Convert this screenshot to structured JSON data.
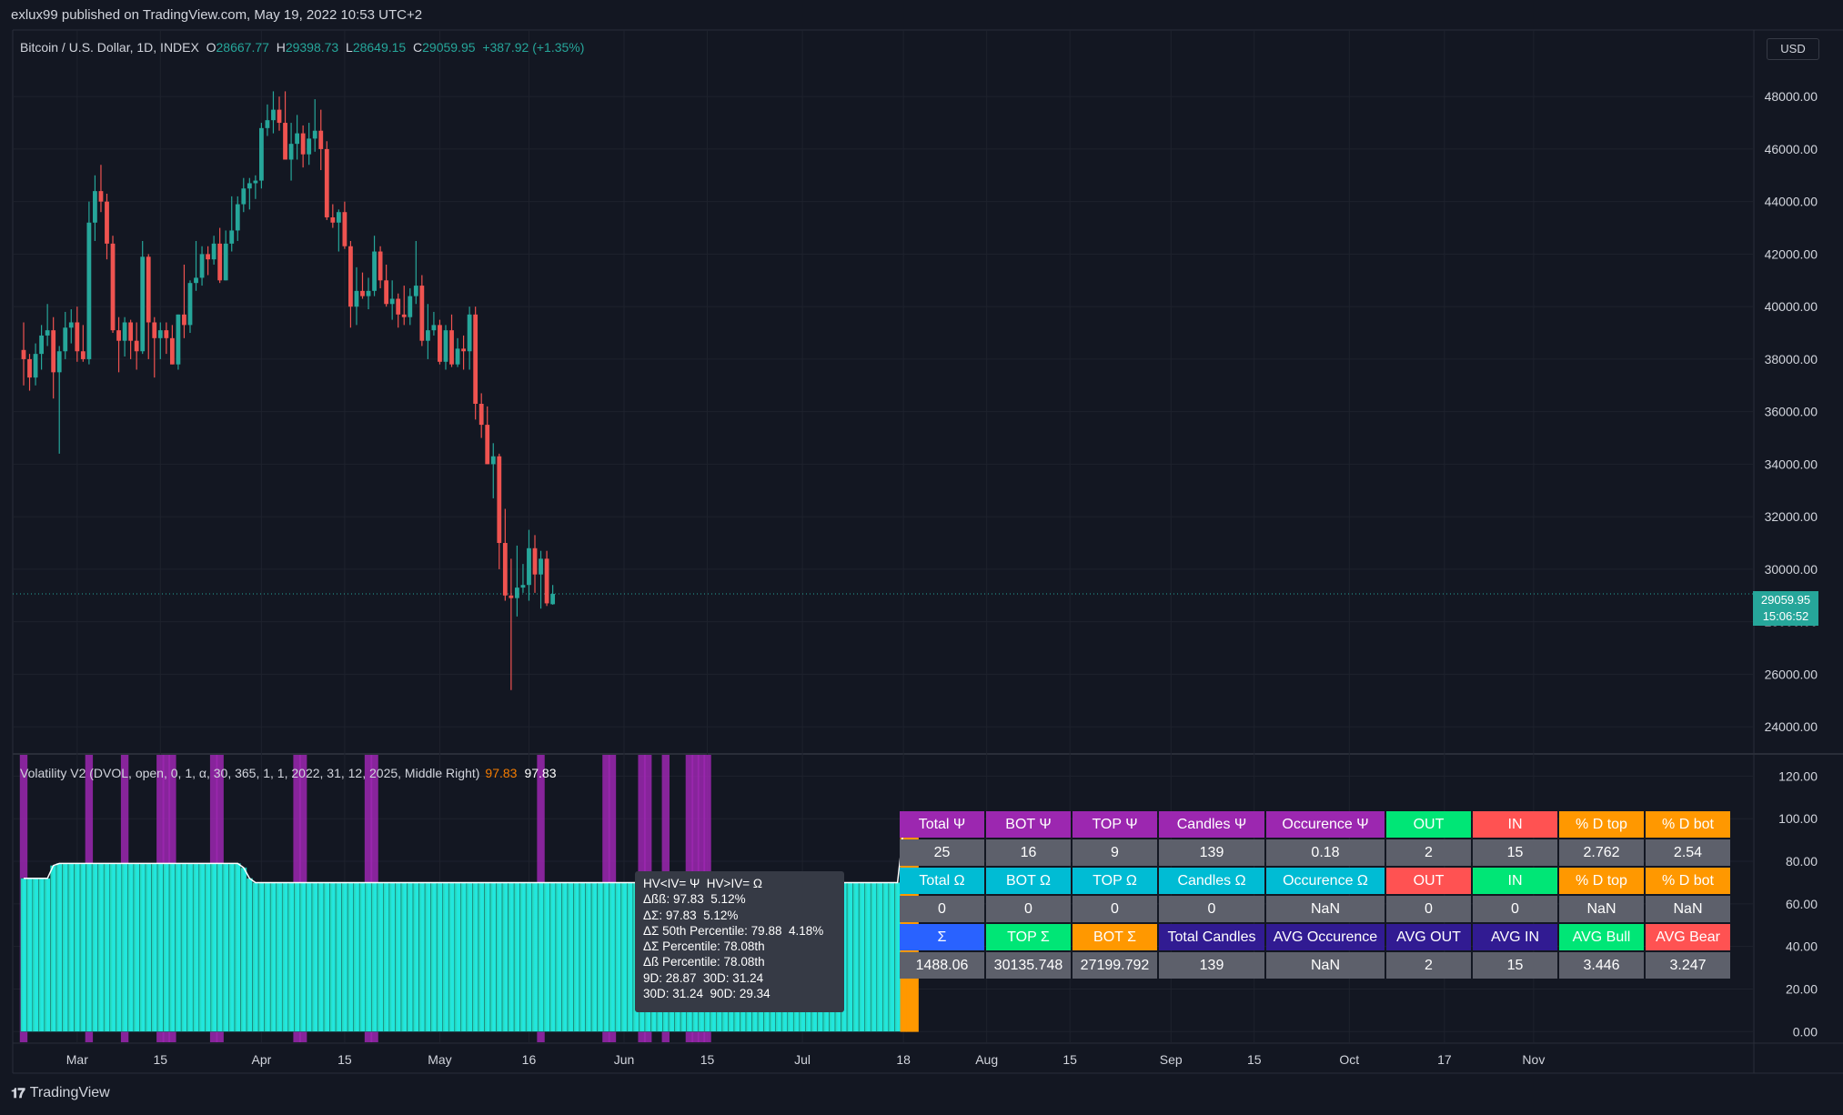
{
  "header": {
    "publisher_line": "exlux99 published on TradingView.com, May 19, 2022 10:53 UTC+2"
  },
  "symbol": {
    "name": "Bitcoin / U.S. Dollar, 1D, INDEX",
    "open_label": "O",
    "open": "28667.77",
    "high_label": "H",
    "high": "29398.73",
    "low_label": "L",
    "low": "28649.15",
    "close_label": "C",
    "close": "29059.95",
    "change": "+387.92 (+1.35%)"
  },
  "currency_button": "USD",
  "last_price": {
    "price": "29059.95",
    "countdown": "15:06:52"
  },
  "footer": {
    "brand": "TradingView",
    "logo": "tradingview-logo-icon"
  },
  "indicator_legend": {
    "name": "Volatility V2 (DVOL, open, 0, 1, α, 30, 365, 1, 1, 2022, 31, 12, 2025, Middle Right)",
    "value1": "97.83",
    "value2": "97.83"
  },
  "tooltip_lines": [
    "HV<IV= Ψ  HV>IV= Ω",
    "Δßß: 97.83  5.12%",
    "ΔΣ: 97.83  5.12%",
    "ΔΣ 50th Percentile: 79.88  4.18%",
    "ΔΣ Percentile: 78.08th",
    "Δß Percentile: 78.08th",
    "9D: 28.87  30D: 31.24",
    "30D: 31.24  90D: 29.34"
  ],
  "stats_table": {
    "rows": [
      [
        {
          "t": "Total Ψ",
          "bg": "#9c27b0"
        },
        {
          "t": "BOT Ψ",
          "bg": "#9c27b0"
        },
        {
          "t": "TOP Ψ",
          "bg": "#9c27b0"
        },
        {
          "t": "Candles Ψ",
          "bg": "#9c27b0"
        },
        {
          "t": "Occurence Ψ",
          "bg": "#9c27b0"
        },
        {
          "t": "OUT",
          "bg": "#00e676"
        },
        {
          "t": "IN",
          "bg": "#ff5252"
        },
        {
          "t": "% D top",
          "bg": "#ff9800"
        },
        {
          "t": "% D bot",
          "bg": "#ff9800"
        }
      ],
      [
        {
          "t": "25",
          "bg": "#5d606b"
        },
        {
          "t": "16",
          "bg": "#5d606b"
        },
        {
          "t": "9",
          "bg": "#5d606b"
        },
        {
          "t": "139",
          "bg": "#5d606b"
        },
        {
          "t": "0.18",
          "bg": "#5d606b"
        },
        {
          "t": "2",
          "bg": "#5d606b"
        },
        {
          "t": "15",
          "bg": "#5d606b"
        },
        {
          "t": "2.762",
          "bg": "#5d606b"
        },
        {
          "t": "2.54",
          "bg": "#5d606b"
        }
      ],
      [
        {
          "t": "Total Ω",
          "bg": "#00bcd4"
        },
        {
          "t": "BOT Ω",
          "bg": "#00bcd4"
        },
        {
          "t": "TOP Ω",
          "bg": "#00bcd4"
        },
        {
          "t": "Candles Ω",
          "bg": "#00bcd4"
        },
        {
          "t": "Occurence Ω",
          "bg": "#00bcd4"
        },
        {
          "t": "OUT",
          "bg": "#ff5252"
        },
        {
          "t": "IN",
          "bg": "#00e676"
        },
        {
          "t": "% D top",
          "bg": "#ff9800"
        },
        {
          "t": "% D bot",
          "bg": "#ff9800"
        }
      ],
      [
        {
          "t": "0",
          "bg": "#5d606b"
        },
        {
          "t": "0",
          "bg": "#5d606b"
        },
        {
          "t": "0",
          "bg": "#5d606b"
        },
        {
          "t": "0",
          "bg": "#5d606b"
        },
        {
          "t": "NaN",
          "bg": "#5d606b"
        },
        {
          "t": "0",
          "bg": "#5d606b"
        },
        {
          "t": "0",
          "bg": "#5d606b"
        },
        {
          "t": "NaN",
          "bg": "#5d606b"
        },
        {
          "t": "NaN",
          "bg": "#5d606b"
        }
      ],
      [
        {
          "t": "Σ",
          "bg": "#2962ff"
        },
        {
          "t": "TOP Σ",
          "bg": "#00e676"
        },
        {
          "t": "BOT Σ",
          "bg": "#ff9800"
        },
        {
          "t": "Total Candles",
          "bg": "#311b92"
        },
        {
          "t": "AVG Occurence",
          "bg": "#311b92"
        },
        {
          "t": "AVG OUT",
          "bg": "#311b92"
        },
        {
          "t": "AVG IN",
          "bg": "#311b92"
        },
        {
          "t": "AVG Bull",
          "bg": "#00e676"
        },
        {
          "t": "AVG Bear",
          "bg": "#ff5252"
        }
      ],
      [
        {
          "t": "1488.06",
          "bg": "#5d606b"
        },
        {
          "t": "30135.748",
          "bg": "#5d606b"
        },
        {
          "t": "27199.792",
          "bg": "#5d606b"
        },
        {
          "t": "139",
          "bg": "#5d606b"
        },
        {
          "t": "NaN",
          "bg": "#5d606b"
        },
        {
          "t": "2",
          "bg": "#5d606b"
        },
        {
          "t": "15",
          "bg": "#5d606b"
        },
        {
          "t": "3.446",
          "bg": "#5d606b"
        },
        {
          "t": "3.247",
          "bg": "#5d606b"
        }
      ]
    ]
  },
  "colors": {
    "up": "#26a69a",
    "down": "#ef5350",
    "purple": "#9c27b0",
    "orange": "#ff9800",
    "background": "#131722",
    "grid": "#1e222d"
  },
  "chart_data": [
    {
      "type": "candlestick",
      "title": "Bitcoin / U.S. Dollar, 1D, INDEX",
      "y_ticks": [
        "48000.00",
        "46000.00",
        "44000.00",
        "42000.00",
        "40000.00",
        "38000.00",
        "36000.00",
        "34000.00",
        "32000.00",
        "30000.00",
        "28000.00",
        "26000.00",
        "24000.00"
      ],
      "ylim": [
        23000,
        50500
      ],
      "x_ticks": [
        "Mar",
        "15",
        "Apr",
        "15",
        "May",
        "16",
        "Jun",
        "15",
        "Jul",
        "18",
        "Aug",
        "15",
        "Sep",
        "15",
        "Oct",
        "17",
        "Nov"
      ],
      "x_tick_dates": [
        "2022-03-01",
        "2022-03-15",
        "2022-04-01",
        "2022-04-15",
        "2022-05-01",
        "2022-05-16",
        "2022-06-01",
        "2022-06-15",
        "2022-07-01",
        "2022-07-18",
        "2022-08-01",
        "2022-08-15",
        "2022-09-01",
        "2022-09-15",
        "2022-10-01",
        "2022-10-17",
        "2022-11-01"
      ],
      "start_date": "2022-02-20",
      "last_price": 29059.95,
      "candles_ohlc": [
        [
          38350,
          39400,
          37000,
          38000
        ],
        [
          38000,
          38200,
          36800,
          37300
        ],
        [
          37300,
          38600,
          37000,
          38200
        ],
        [
          38200,
          39300,
          37600,
          38900
        ],
        [
          38900,
          40100,
          38500,
          39100
        ],
        [
          39100,
          39600,
          36500,
          37500
        ],
        [
          37500,
          38500,
          34400,
          38300
        ],
        [
          38300,
          39800,
          38000,
          39200
        ],
        [
          39200,
          39900,
          38600,
          39400
        ],
        [
          39400,
          40000,
          37900,
          38300
        ],
        [
          38300,
          39300,
          37900,
          38000
        ],
        [
          38000,
          44000,
          37800,
          43200
        ],
        [
          43200,
          45000,
          42500,
          44400
        ],
        [
          44400,
          45400,
          43600,
          44000
        ],
        [
          44000,
          44300,
          41800,
          42400
        ],
        [
          42400,
          42700,
          39000,
          39100
        ],
        [
          39100,
          39600,
          37500,
          38700
        ],
        [
          38700,
          39600,
          38100,
          39400
        ],
        [
          39400,
          39500,
          38000,
          38700
        ],
        [
          38700,
          39400,
          37600,
          38300
        ],
        [
          38300,
          42500,
          38200,
          41900
        ],
        [
          41900,
          42000,
          38000,
          39400
        ],
        [
          39400,
          39600,
          37300,
          38800
        ],
        [
          38800,
          39400,
          38000,
          39100
        ],
        [
          39100,
          39400,
          38200,
          38800
        ],
        [
          38800,
          39300,
          37800,
          37800
        ],
        [
          37800,
          39700,
          37600,
          39700
        ],
        [
          39700,
          41600,
          38800,
          39300
        ],
        [
          39300,
          41000,
          39000,
          40900
        ],
        [
          40900,
          42500,
          40600,
          41100
        ],
        [
          41100,
          42300,
          40800,
          42000
        ],
        [
          42000,
          42300,
          41200,
          41800
        ],
        [
          41800,
          42700,
          41600,
          42400
        ],
        [
          42400,
          43000,
          40900,
          41000
        ],
        [
          41000,
          42900,
          41000,
          42400
        ],
        [
          42400,
          44200,
          42100,
          42900
        ],
        [
          42900,
          44200,
          42500,
          43900
        ],
        [
          43900,
          44900,
          43600,
          44500
        ],
        [
          44500,
          44900,
          43700,
          44700
        ],
        [
          44700,
          45000,
          44100,
          44800
        ],
        [
          44800,
          47000,
          44500,
          46800
        ],
        [
          46800,
          47700,
          46500,
          47100
        ],
        [
          47100,
          48200,
          46600,
          47500
        ],
        [
          47500,
          48000,
          46700,
          47000
        ],
        [
          47000,
          48200,
          45600,
          45600
        ],
        [
          45600,
          47000,
          44800,
          46200
        ],
        [
          46200,
          47300,
          45600,
          46600
        ],
        [
          46600,
          46900,
          45300,
          45800
        ],
        [
          45800,
          47000,
          45400,
          46400
        ],
        [
          46400,
          47900,
          45900,
          46700
        ],
        [
          46700,
          47500,
          45200,
          46000
        ],
        [
          46000,
          46300,
          43300,
          43400
        ],
        [
          43400,
          43900,
          43000,
          43200
        ],
        [
          43200,
          43700,
          42100,
          43600
        ],
        [
          43600,
          44000,
          42200,
          42300
        ],
        [
          42300,
          42500,
          39200,
          40000
        ],
        [
          40000,
          41500,
          39300,
          40600
        ],
        [
          40600,
          41300,
          40300,
          40400
        ],
        [
          40400,
          41100,
          39900,
          40600
        ],
        [
          40600,
          42700,
          40400,
          42100
        ],
        [
          42100,
          42300,
          40700,
          41000
        ],
        [
          41000,
          41600,
          40000,
          40100
        ],
        [
          40100,
          41000,
          39500,
          40300
        ],
        [
          40300,
          40500,
          39200,
          39700
        ],
        [
          39700,
          40800,
          39300,
          39600
        ],
        [
          39600,
          40700,
          39300,
          40400
        ],
        [
          40400,
          42500,
          40100,
          40800
        ],
        [
          40800,
          41200,
          38500,
          38700
        ],
        [
          38700,
          40100,
          38000,
          39100
        ],
        [
          39100,
          39800,
          38900,
          39300
        ],
        [
          39300,
          39500,
          37800,
          37900
        ],
        [
          37900,
          39300,
          37600,
          39100
        ],
        [
          39100,
          39700,
          37700,
          37800
        ],
        [
          37800,
          38800,
          37700,
          38400
        ],
        [
          38400,
          38900,
          37600,
          38300
        ],
        [
          38300,
          40000,
          37600,
          39700
        ],
        [
          39700,
          40000,
          35700,
          36300
        ],
        [
          36300,
          36700,
          35000,
          35500
        ],
        [
          35500,
          36200,
          34000,
          34000
        ],
        [
          34000,
          34800,
          32700,
          34300
        ],
        [
          34300,
          34400,
          30000,
          31000
        ],
        [
          31000,
          32300,
          28800,
          29000
        ],
        [
          29000,
          30400,
          25400,
          28900
        ],
        [
          28900,
          30900,
          28200,
          29300
        ],
        [
          29300,
          30200,
          29100,
          29400
        ],
        [
          29400,
          31500,
          28800,
          30800
        ],
        [
          30800,
          31300,
          29100,
          29800
        ],
        [
          29800,
          30700,
          28500,
          30400
        ],
        [
          30400,
          30700,
          28600,
          28700
        ],
        [
          28667.77,
          29398.73,
          28649.15,
          29059.95
        ]
      ]
    },
    {
      "type": "bar",
      "title": "Volatility V2 (DVOL, open, 0, 1, α, 30, 365, 1, 1, 2022, 31, 12, 2025, Middle Right)",
      "y_ticks": [
        "120.00",
        "100.00",
        "80.00",
        "60.00",
        "40.00",
        "20.00",
        "0.00"
      ],
      "ylim": [
        -5,
        130
      ],
      "series_values": [
        72,
        72,
        72,
        72,
        72,
        78,
        79,
        79,
        79,
        79,
        79,
        79,
        79,
        79,
        79,
        79,
        79,
        79,
        79,
        79,
        79,
        79,
        79,
        79,
        79,
        79,
        79,
        79,
        79,
        79,
        79,
        79,
        79,
        79,
        79,
        79,
        79,
        77,
        72,
        70,
        70,
        70,
        70,
        70,
        70,
        70,
        70,
        70,
        70,
        70,
        70,
        70,
        70,
        70,
        70,
        70,
        70,
        70,
        70,
        70,
        70,
        70,
        70,
        70,
        70,
        70,
        70,
        70,
        70,
        70,
        70,
        70,
        70,
        70,
        70,
        70,
        70,
        70,
        70,
        70,
        70,
        70,
        70,
        70,
        70,
        70,
        70,
        70,
        70,
        70,
        70,
        70,
        70,
        70,
        70,
        70,
        70,
        70,
        70,
        70,
        70,
        70,
        70,
        70,
        70,
        70,
        70,
        70,
        70,
        70,
        70,
        70,
        70,
        70,
        70,
        70,
        70,
        70,
        70,
        70,
        70,
        70,
        70,
        70,
        70,
        70,
        70,
        70,
        70,
        70,
        70,
        70,
        70,
        70,
        70,
        70,
        70,
        70,
        70,
        70,
        70,
        70,
        70,
        70,
        70,
        70,
        70,
        70,
        95,
        99,
        97.83
      ],
      "highlight_bars": [
        0,
        11,
        17,
        23,
        24,
        25,
        32,
        33,
        46,
        47,
        58,
        59,
        87,
        98,
        99,
        104,
        105,
        108,
        112,
        113,
        114,
        115
      ]
    }
  ]
}
